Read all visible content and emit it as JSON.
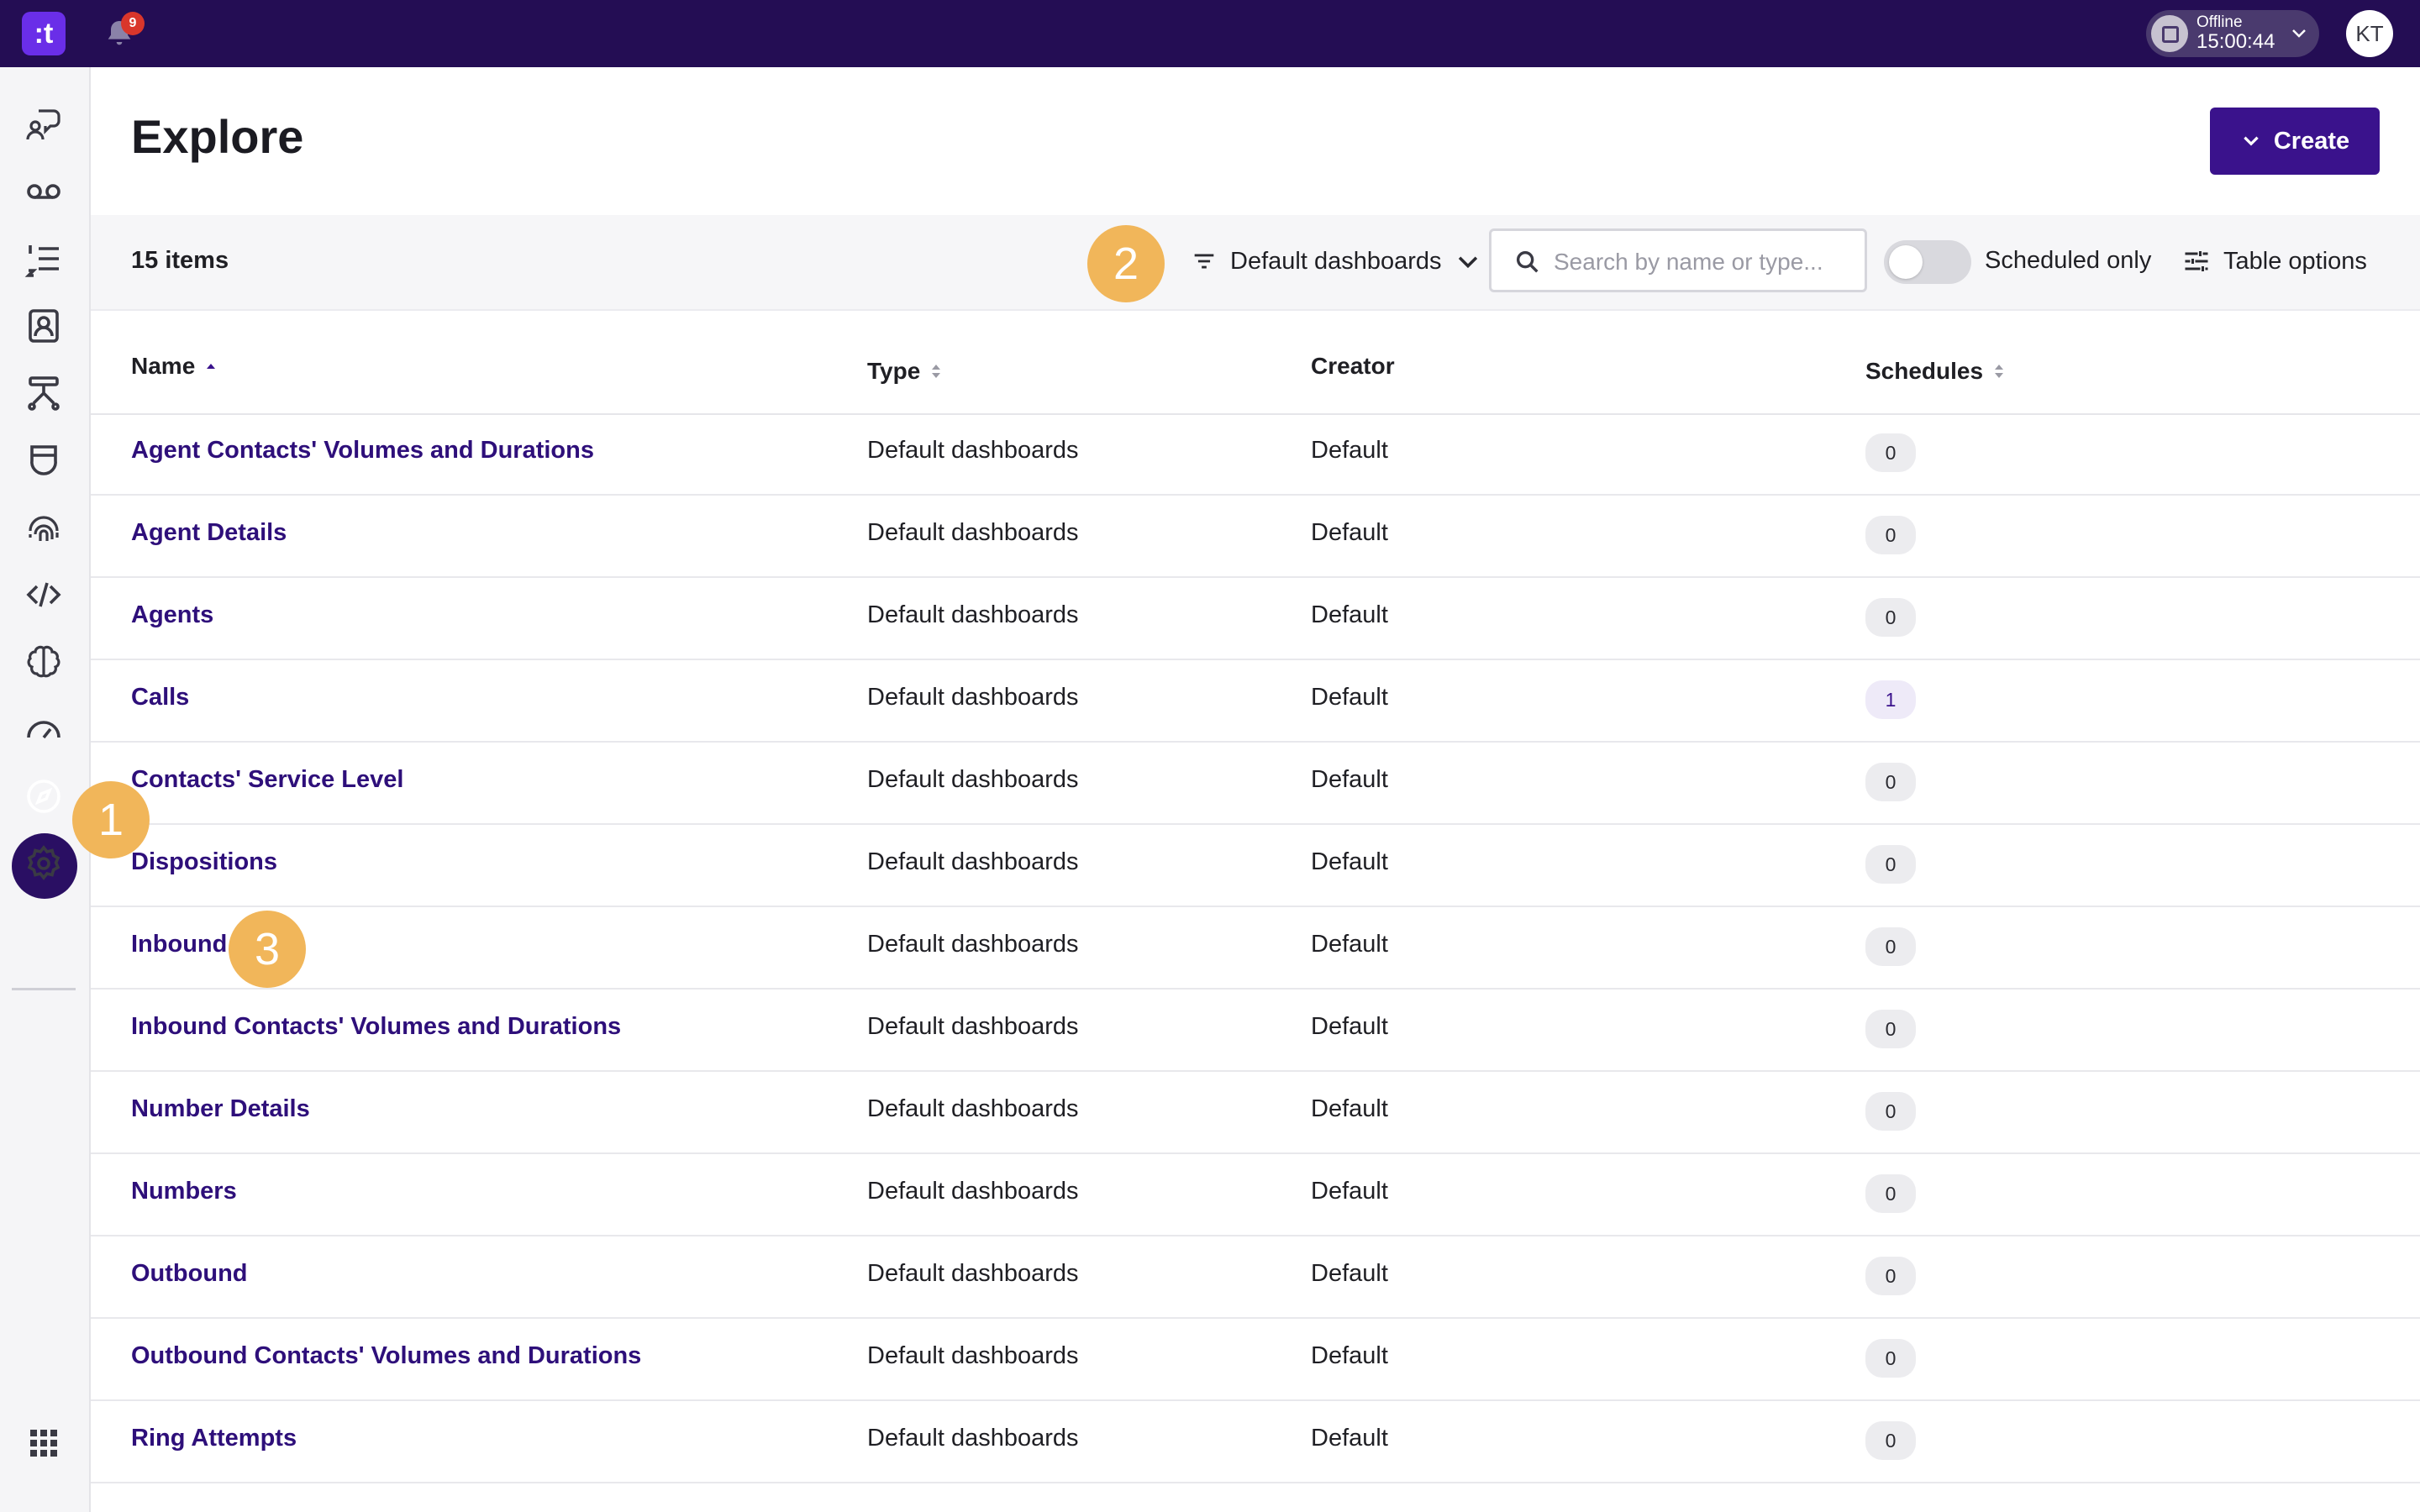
{
  "topbar": {
    "logo_text": ":t",
    "notification_count": "9",
    "status_label": "Offline",
    "status_time": "15:00:44",
    "avatar_initials": "KT"
  },
  "sidebar": {
    "items": [
      {
        "icon": "chat-bubble-person-icon"
      },
      {
        "icon": "voicemail-icon"
      },
      {
        "icon": "list-numbered-icon"
      },
      {
        "icon": "contacts-book-icon"
      },
      {
        "icon": "workflow-icon"
      },
      {
        "icon": "shield-icon"
      },
      {
        "icon": "fingerprint-icon"
      },
      {
        "icon": "code-icon"
      },
      {
        "icon": "brain-icon"
      },
      {
        "icon": "gauge-icon"
      },
      {
        "icon": "compass-icon",
        "active": true
      },
      {
        "icon": "gear-icon"
      },
      {
        "icon": "apps-grid-icon"
      }
    ]
  },
  "header": {
    "title": "Explore",
    "create_label": "Create"
  },
  "toolbar": {
    "items_count": "15 items",
    "filter_label": "Default dashboards",
    "search_placeholder": "Search by name or type...",
    "scheduled_only_label": "Scheduled only",
    "table_options_label": "Table options"
  },
  "table": {
    "columns": {
      "name": "Name",
      "type": "Type",
      "creator": "Creator",
      "schedules": "Schedules"
    },
    "rows": [
      {
        "name": "Agent Contacts' Volumes and Durations",
        "type": "Default dashboards",
        "creator": "Default",
        "schedules": "0"
      },
      {
        "name": "Agent Details",
        "type": "Default dashboards",
        "creator": "Default",
        "schedules": "0"
      },
      {
        "name": "Agents",
        "type": "Default dashboards",
        "creator": "Default",
        "schedules": "0"
      },
      {
        "name": "Calls",
        "type": "Default dashboards",
        "creator": "Default",
        "schedules": "1"
      },
      {
        "name": "Contacts' Service Level",
        "type": "Default dashboards",
        "creator": "Default",
        "schedules": "0"
      },
      {
        "name": "Dispositions",
        "type": "Default dashboards",
        "creator": "Default",
        "schedules": "0"
      },
      {
        "name": "Inbound",
        "type": "Default dashboards",
        "creator": "Default",
        "schedules": "0"
      },
      {
        "name": "Inbound Contacts' Volumes and Durations",
        "type": "Default dashboards",
        "creator": "Default",
        "schedules": "0"
      },
      {
        "name": "Number Details",
        "type": "Default dashboards",
        "creator": "Default",
        "schedules": "0"
      },
      {
        "name": "Numbers",
        "type": "Default dashboards",
        "creator": "Default",
        "schedules": "0"
      },
      {
        "name": "Outbound",
        "type": "Default dashboards",
        "creator": "Default",
        "schedules": "0"
      },
      {
        "name": "Outbound Contacts' Volumes and Durations",
        "type": "Default dashboards",
        "creator": "Default",
        "schedules": "0"
      },
      {
        "name": "Ring Attempts",
        "type": "Default dashboards",
        "creator": "Default",
        "schedules": "0"
      }
    ]
  },
  "markers": [
    "1",
    "2",
    "3"
  ],
  "colors": {
    "topbar": "#240d54",
    "accent": "#3a128c",
    "marker": "#f1b65a"
  }
}
